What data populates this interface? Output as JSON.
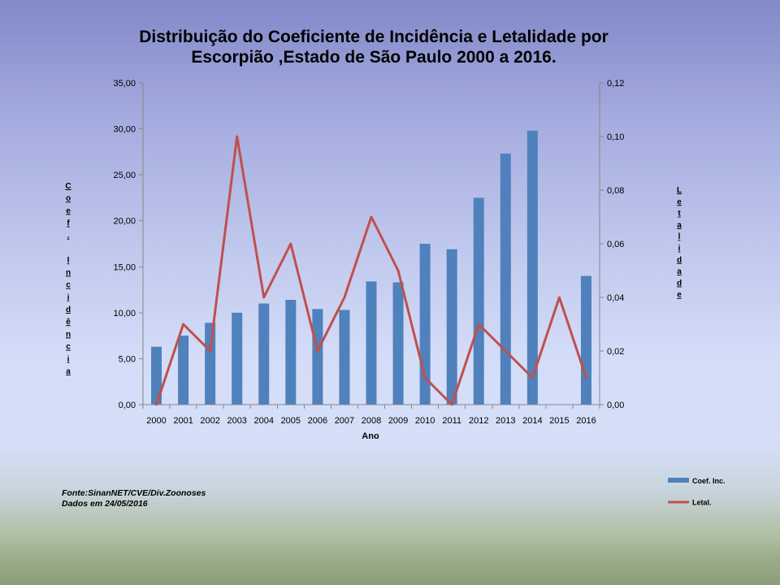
{
  "chart_data": {
    "type": "bar",
    "title": "Distribuição do Coeficiente de Incidência e Letalidade por Escorpião ,Estado de São Paulo 2000 a 2016.",
    "xlabel": "Ano",
    "ylabel": "Coef. Incidência",
    "ylabel_right": "Letalidade",
    "categories": [
      "2000",
      "2001",
      "2002",
      "2003",
      "2004",
      "2005",
      "2006",
      "2007",
      "2008",
      "2009",
      "2010",
      "2011",
      "2012",
      "2013",
      "2014",
      "2015",
      "2016"
    ],
    "ylim": [
      0,
      35
    ],
    "ylim_right": [
      0,
      0.12
    ],
    "yticks": [
      "0,00",
      "5,00",
      "10,00",
      "15,00",
      "20,00",
      "25,00",
      "30,00",
      "35,00"
    ],
    "yticks_right": [
      "0,00",
      "0,02",
      "0,04",
      "0,06",
      "0,08",
      "0,10",
      "0,12"
    ],
    "grid": false,
    "legend_position": "bottom-right",
    "series": [
      {
        "name": "Coef. Inc.",
        "type": "bar",
        "axis": "left",
        "color": "#4f81bd",
        "values": [
          6.3,
          7.5,
          8.9,
          10.0,
          11.0,
          11.4,
          10.4,
          10.3,
          13.4,
          13.3,
          17.5,
          16.9,
          22.5,
          27.3,
          29.8,
          null,
          14.0
        ]
      },
      {
        "name": "Letal.",
        "type": "line",
        "axis": "right",
        "color": "#c0504d",
        "values": [
          0.0,
          0.03,
          0.02,
          0.1,
          0.04,
          0.06,
          0.02,
          0.04,
          0.07,
          0.05,
          0.01,
          0.0,
          0.03,
          0.02,
          0.01,
          0.04,
          0.01
        ]
      }
    ]
  },
  "notes": {
    "source": "Fonte:SinanNET/CVE/Div.Zoonoses",
    "date": "Dados em 24/05/2016"
  },
  "colors": {
    "axis": "#868686",
    "text": "#000000"
  }
}
